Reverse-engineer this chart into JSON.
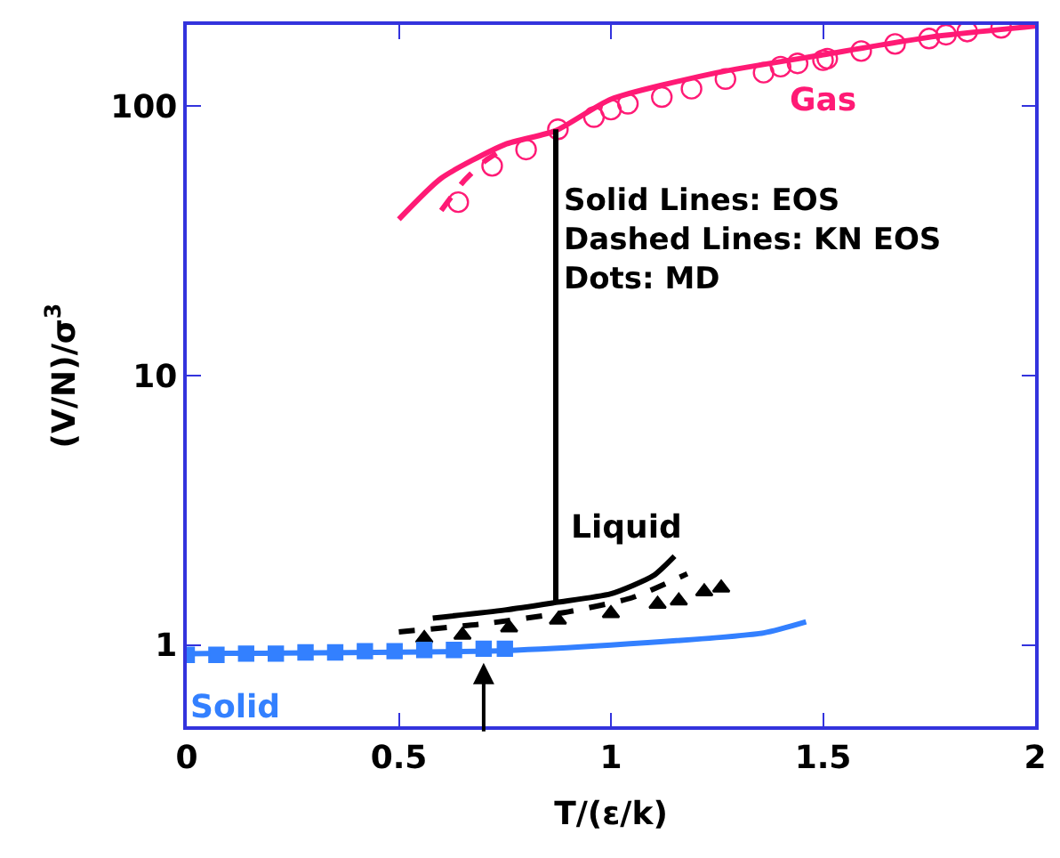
{
  "chart_data": {
    "type": "line",
    "xlabel": "T/(ε/k)",
    "ylabel": "(V/N)/σ$^{3}$",
    "log": "y",
    "xlim": [
      0,
      2
    ],
    "xticks": [
      0,
      0.5,
      1,
      1.5,
      2
    ],
    "ylim": [
      0.5,
      200
    ],
    "yticks": [
      1,
      10,
      100
    ],
    "series": [
      {
        "name": "Gas",
        "color": "#ff1a75",
        "line_style": "solid",
        "marker": "none",
        "x": [
          0.5,
          0.6,
          0.75,
          0.87,
          1.0,
          1.25,
          1.5,
          1.75,
          2.0
        ],
        "values": [
          38,
          54,
          72,
          81,
          106,
          133,
          155,
          180,
          198
        ]
      },
      {
        "color": "#ff1a75",
        "line_style": "dashed",
        "marker": "none",
        "x": [
          0.6,
          0.65,
          0.7,
          0.75
        ],
        "values": [
          41,
          52,
          62,
          70
        ]
      },
      {
        "type": "scatter",
        "color": "#ff1a75",
        "marker": "circle",
        "x": [
          0.64,
          0.72,
          0.8,
          0.875,
          0.96,
          1.0,
          1.04,
          1.12,
          1.19,
          1.27,
          1.36,
          1.4,
          1.44,
          1.5,
          1.51,
          1.59,
          1.67,
          1.75,
          1.79,
          1.84,
          1.92
        ],
        "values": [
          44,
          60,
          69,
          82,
          91,
          97,
          102,
          108,
          116,
          126,
          133,
          140,
          144,
          148,
          150,
          160,
          170,
          178,
          184,
          189,
          195
        ]
      },
      {
        "color": "#000000",
        "line_style": "solid",
        "marker": "none",
        "x": [
          0.87,
          0.87
        ],
        "values": [
          82,
          1.44
        ]
      },
      {
        "name": "Liquid",
        "color": "#000000",
        "line_style": "solid",
        "marker": "none",
        "x": [
          0.58,
          0.75,
          0.87,
          1.0,
          1.1,
          1.15
        ],
        "values": [
          1.26,
          1.35,
          1.44,
          1.55,
          1.81,
          2.14
        ]
      },
      {
        "color": "#000000",
        "line_style": "dashed",
        "marker": "none",
        "x": [
          0.5,
          0.7,
          0.9,
          1.05,
          1.18
        ],
        "values": [
          1.12,
          1.2,
          1.33,
          1.5,
          1.84
        ]
      },
      {
        "type": "scatter",
        "color": "#000000",
        "marker": "triangle",
        "x": [
          0.56,
          0.65,
          0.76,
          0.875,
          1.0,
          1.11,
          1.16,
          1.22,
          1.26
        ],
        "values": [
          1.06,
          1.09,
          1.16,
          1.24,
          1.31,
          1.42,
          1.46,
          1.58,
          1.63
        ]
      },
      {
        "name": "Solid",
        "color": "#3380ff",
        "line_style": "solid",
        "marker": "none",
        "x": [
          0,
          0.75,
          1.0,
          1.36,
          1.46
        ],
        "values": [
          0.93,
          0.955,
          1.0,
          1.11,
          1.22
        ]
      },
      {
        "type": "scatter",
        "color": "#3380ff",
        "marker": "square",
        "x": [
          0,
          0.07,
          0.14,
          0.21,
          0.28,
          0.35,
          0.42,
          0.49,
          0.56,
          0.63,
          0.7,
          0.75
        ],
        "values": [
          0.92,
          0.92,
          0.93,
          0.93,
          0.94,
          0.94,
          0.95,
          0.95,
          0.96,
          0.96,
          0.97,
          0.97
        ]
      }
    ],
    "annotations": [
      "Solid Lines: EOS",
      "Dashed Lines: KN EOS",
      "Dots: MD"
    ]
  }
}
